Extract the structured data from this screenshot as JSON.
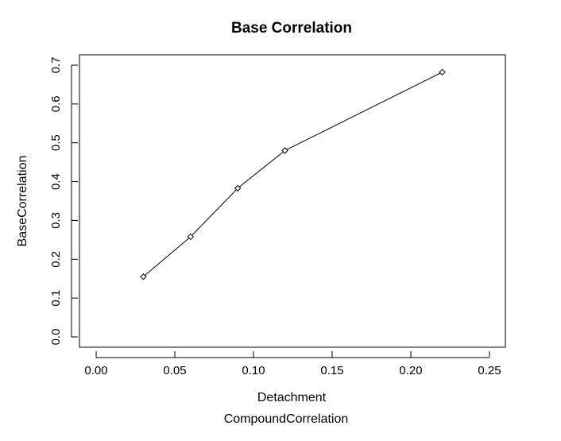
{
  "chart_data": {
    "type": "line",
    "title": "Base Correlation",
    "xlabel": "Detachment",
    "ylabel": "BaseCorrelation",
    "caption": "CompoundCorrelation",
    "xlim": [
      0.0,
      0.25
    ],
    "ylim": [
      0.0,
      0.7
    ],
    "x_ticks": [
      "0.00",
      "0.05",
      "0.10",
      "0.15",
      "0.20",
      "0.25"
    ],
    "y_ticks": [
      "0.0",
      "0.1",
      "0.2",
      "0.3",
      "0.4",
      "0.5",
      "0.6",
      "0.7"
    ],
    "grid": false,
    "marker": "open-diamond",
    "series": [
      {
        "x": [
          0.03,
          0.06,
          0.09,
          0.12,
          0.22
        ],
        "y": [
          0.155,
          0.258,
          0.383,
          0.48,
          0.682
        ]
      }
    ]
  }
}
